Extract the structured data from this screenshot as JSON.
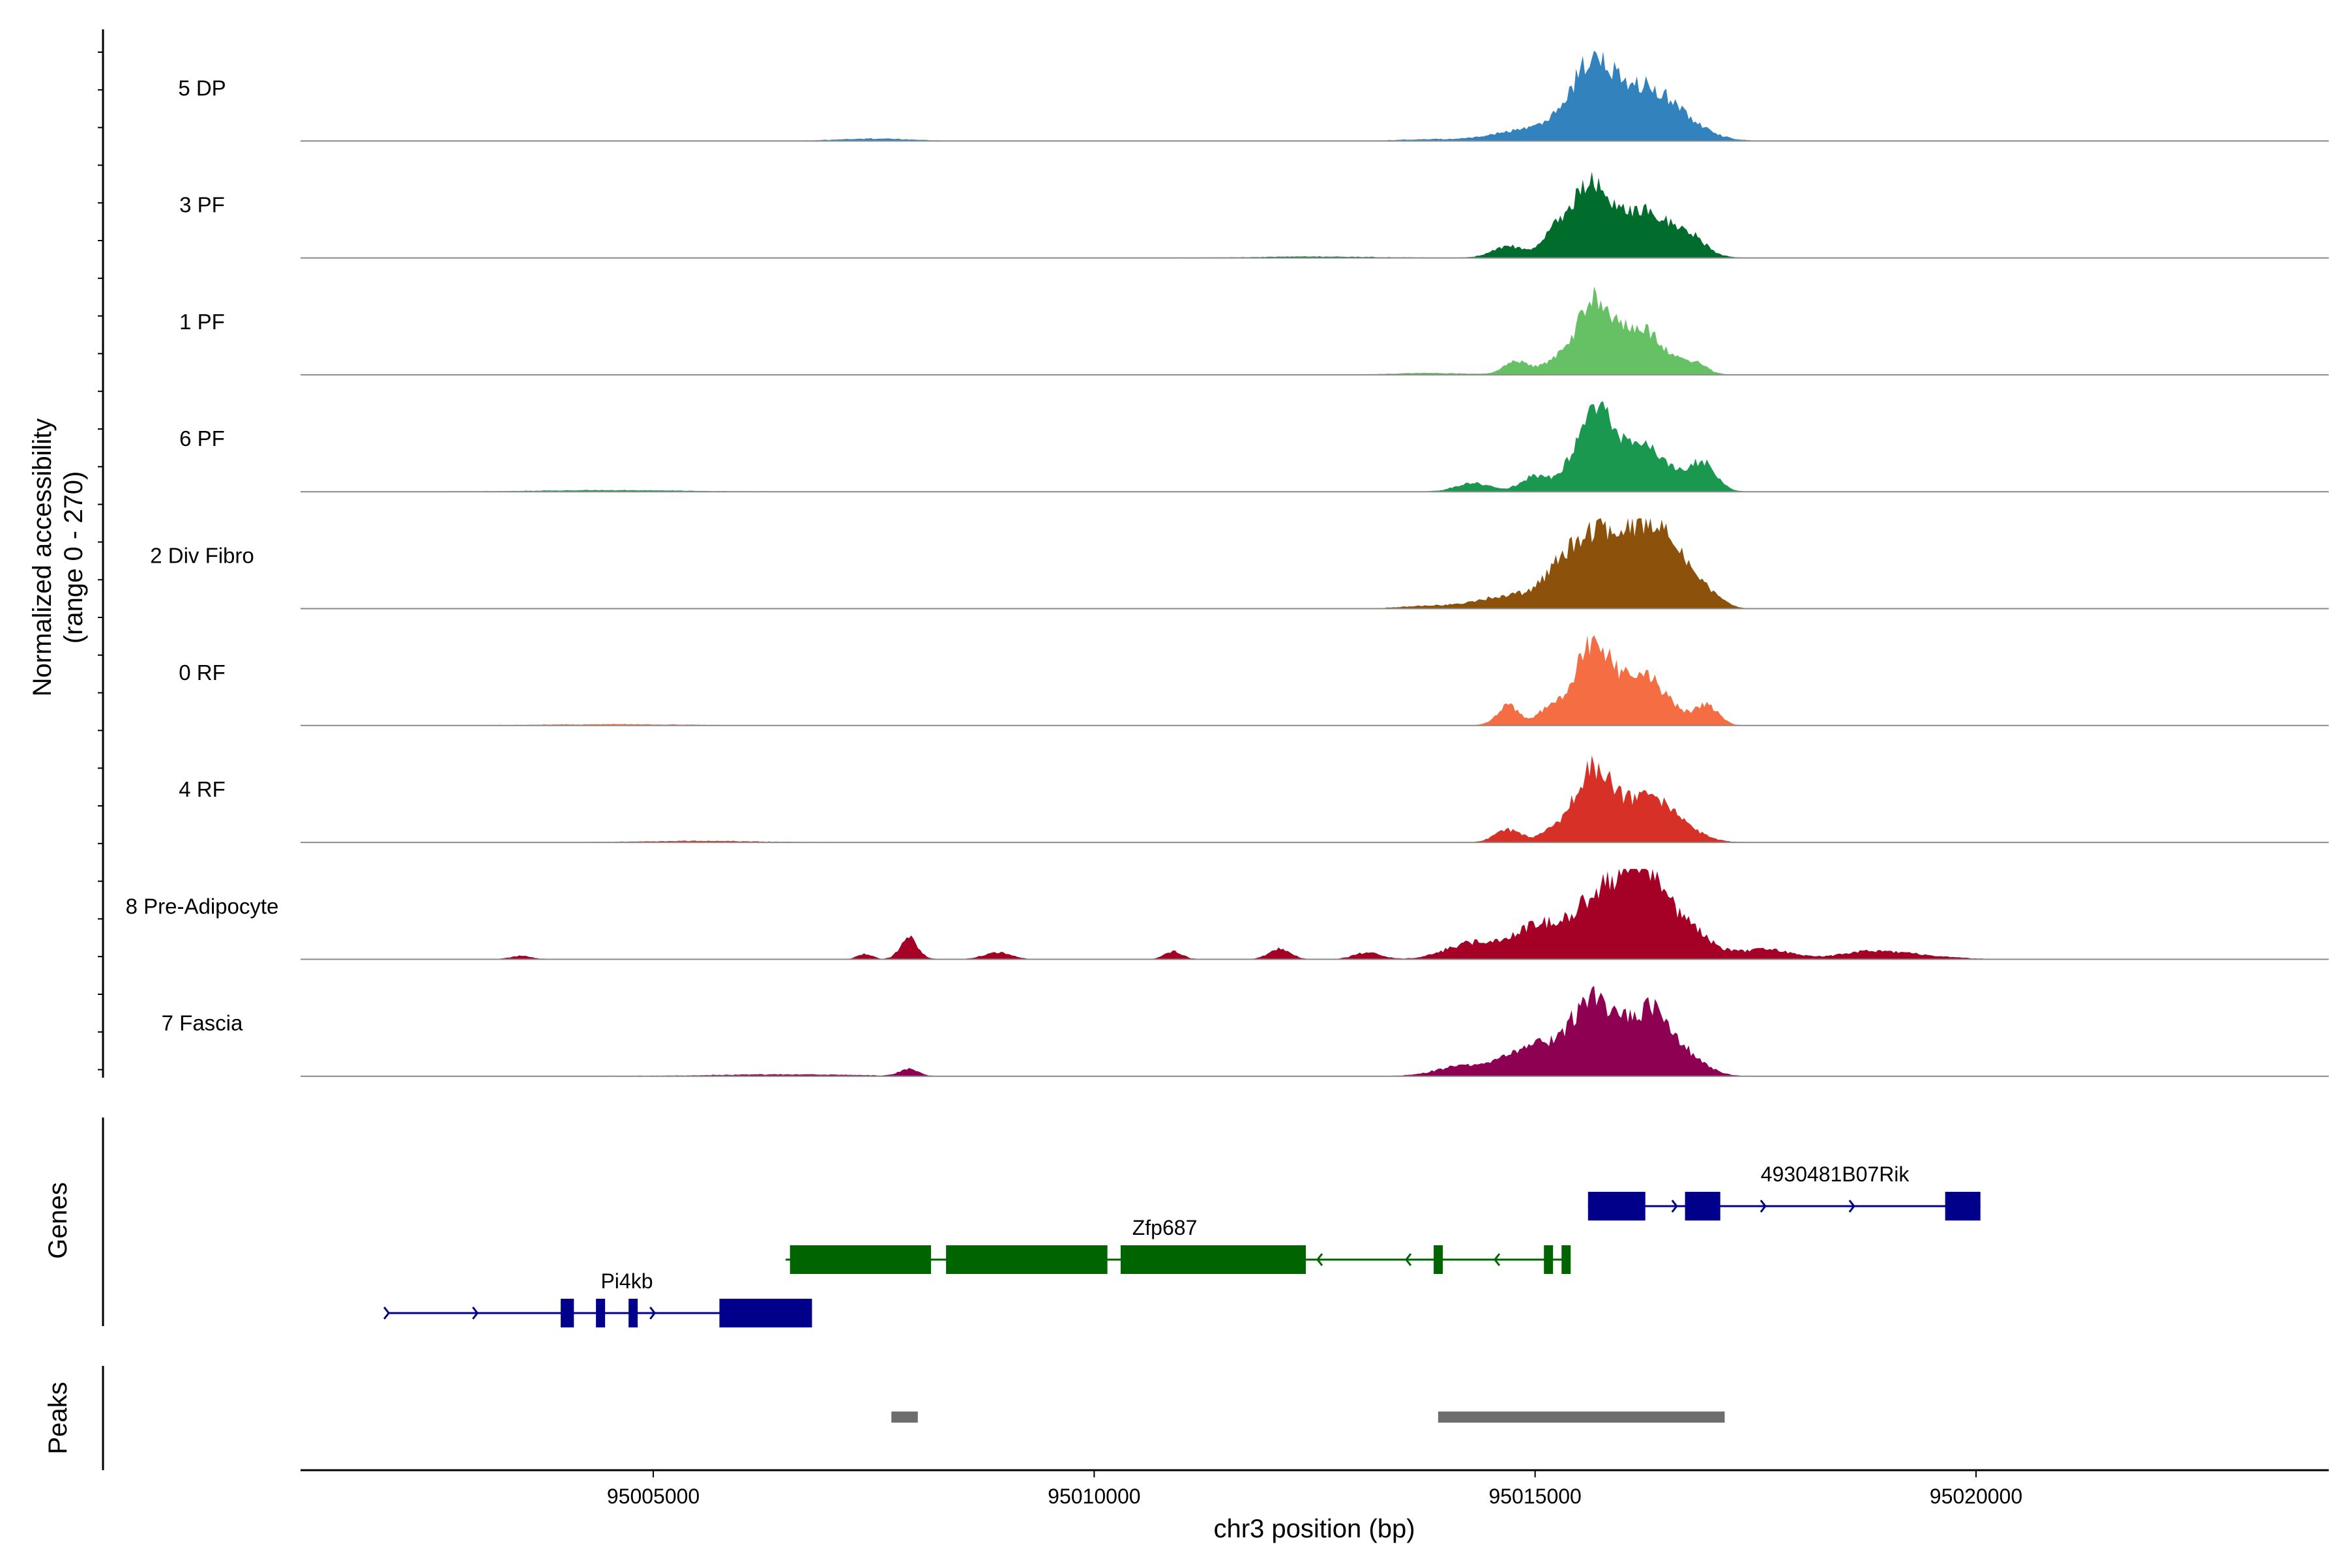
{
  "chart_data": {
    "type": "area",
    "y_axis_label": "Normalized accessibility",
    "y_axis_range_label": "(range 0 - 270)",
    "ylim": [
      0,
      270
    ],
    "x_axis_label": "chr3 position (bp)",
    "xlim": [
      95001000,
      95024000
    ],
    "x_ticks": [
      95005000,
      95010000,
      95015000,
      95020000
    ],
    "x_tick_labels": [
      "95005000",
      "95010000",
      "95015000",
      "95020000"
    ],
    "genes_label": "Genes",
    "peaks_label": "Peaks",
    "tracks": [
      {
        "name": "5 DP",
        "color": "#3182bd",
        "peaks": [
          [
            95014700,
            28,
            300
          ],
          [
            95015200,
            45,
            250
          ],
          [
            95015650,
            265,
            230
          ],
          [
            95016250,
            185,
            330
          ],
          [
            95016750,
            30,
            280
          ],
          [
            95007500,
            8,
            400
          ],
          [
            95013800,
            6,
            300
          ]
        ]
      },
      {
        "name": "3 PF",
        "color": "#006d2c",
        "peaks": [
          [
            95014700,
            42,
            180
          ],
          [
            95015200,
            65,
            140
          ],
          [
            95015600,
            250,
            220
          ],
          [
            95016250,
            165,
            340
          ],
          [
            95016800,
            40,
            150
          ],
          [
            95012500,
            4,
            700
          ]
        ]
      },
      {
        "name": "1 PF",
        "color": "#66c164",
        "peaks": [
          [
            95014800,
            48,
            150
          ],
          [
            95015200,
            38,
            120
          ],
          [
            95015650,
            255,
            200
          ],
          [
            95016200,
            160,
            260
          ],
          [
            95016800,
            40,
            140
          ],
          [
            95013800,
            6,
            400
          ]
        ]
      },
      {
        "name": "6 PF",
        "color": "#1a9850",
        "peaks": [
          [
            95014300,
            30,
            200
          ],
          [
            95015000,
            55,
            160
          ],
          [
            95015650,
            270,
            210
          ],
          [
            95016200,
            160,
            300
          ],
          [
            95016900,
            100,
            150
          ],
          [
            95004500,
            5,
            800
          ]
        ]
      },
      {
        "name": "2 Div Fibro",
        "color": "#8c510a",
        "peaks": [
          [
            95014600,
            38,
            300
          ],
          [
            95015600,
            270,
            360
          ],
          [
            95016200,
            220,
            230
          ],
          [
            95016600,
            190,
            210
          ],
          [
            95017000,
            35,
            150
          ],
          [
            95013800,
            10,
            300
          ]
        ]
      },
      {
        "name": "0 RF",
        "color": "#f46d43",
        "peaks": [
          [
            95014700,
            70,
            130
          ],
          [
            95015150,
            55,
            120
          ],
          [
            95015650,
            300,
            210
          ],
          [
            95016250,
            170,
            270
          ],
          [
            95016950,
            70,
            130
          ],
          [
            95004500,
            4,
            800
          ]
        ]
      },
      {
        "name": "4 RF",
        "color": "#d73027",
        "peaks": [
          [
            95014700,
            45,
            150
          ],
          [
            95015150,
            30,
            120
          ],
          [
            95015650,
            260,
            220
          ],
          [
            95016300,
            160,
            290
          ],
          [
            95016800,
            15,
            200
          ],
          [
            95005500,
            5,
            600
          ]
        ]
      },
      {
        "name": "8 Pre-Adipocyte",
        "color": "#a50026",
        "peaks": [
          [
            95007900,
            75,
            100
          ],
          [
            95007400,
            20,
            80
          ],
          [
            95003500,
            12,
            120
          ],
          [
            95008900,
            25,
            150
          ],
          [
            95010900,
            28,
            100
          ],
          [
            95012100,
            40,
            120
          ],
          [
            95013100,
            25,
            150
          ],
          [
            95014300,
            60,
            300
          ],
          [
            95015000,
            110,
            250
          ],
          [
            95015700,
            220,
            300
          ],
          [
            95016200,
            300,
            230
          ],
          [
            95016700,
            120,
            260
          ],
          [
            95017600,
            35,
            300
          ],
          [
            95018700,
            20,
            300
          ],
          [
            95019200,
            18,
            400
          ]
        ]
      },
      {
        "name": "7 Fascia",
        "color": "#8e0152",
        "peaks": [
          [
            95007900,
            25,
            100
          ],
          [
            95014200,
            38,
            300
          ],
          [
            95015000,
            110,
            300
          ],
          [
            95015650,
            270,
            230
          ],
          [
            95016300,
            240,
            260
          ],
          [
            95016800,
            40,
            200
          ],
          [
            95006500,
            6,
            800
          ]
        ]
      }
    ],
    "genes": [
      {
        "name": "Pi4kb",
        "color": "#00008b",
        "row": 3,
        "strand": "+",
        "start": 95002000,
        "end": 95006800,
        "label_pos": 95004700,
        "exons": [
          [
            95003950,
            95004100
          ],
          [
            95004350,
            95004450
          ],
          [
            95004720,
            95004760
          ],
          [
            95005750,
            95006800
          ]
        ]
      },
      {
        "name": "Zfp687",
        "color": "#006400",
        "row": 2,
        "strand": "-",
        "start": 95006500,
        "end": 95015400,
        "label_pos": 95010800,
        "exons": [
          [
            95006550,
            95008150
          ],
          [
            95008320,
            95010150
          ],
          [
            95010300,
            95012400
          ],
          [
            95013850,
            95013950
          ],
          [
            95015100,
            95015200
          ],
          [
            95015300,
            95015400
          ]
        ]
      },
      {
        "name": "4930481B07Rik",
        "color": "#00008b",
        "row": 1,
        "strand": "+",
        "start": 95015600,
        "end": 95020050,
        "label_pos": 95018400,
        "exons": [
          [
            95015600,
            95016250
          ],
          [
            95016700,
            95017100
          ],
          [
            95019650,
            95020050
          ]
        ]
      }
    ],
    "peaks": [
      [
        95007700,
        95008000
      ],
      [
        95013900,
        95017150
      ]
    ]
  }
}
